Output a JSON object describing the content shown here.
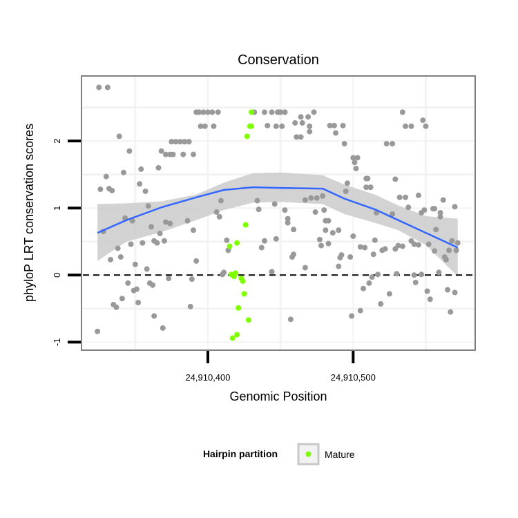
{
  "chart_data": {
    "type": "scatter",
    "title": "Conservation",
    "xlabel": "Genomic Position",
    "ylabel": "phyloP LRT conservation scores",
    "xlim": [
      24910313,
      24910584
    ],
    "ylim": [
      -1.12,
      2.97
    ],
    "x_ticks": [
      24910400,
      24910500
    ],
    "x_tick_labels": [
      "24,910,400",
      "24,910,500"
    ],
    "y_ticks": [
      -1,
      0,
      1,
      2
    ],
    "y_tick_labels": [
      "-1",
      "0",
      "1",
      "2"
    ],
    "grid": true,
    "reference_line_y": 0,
    "legend": {
      "title": "Hairpin partition",
      "entries": [
        "Mature"
      ],
      "placement": "bottom"
    },
    "colors": {
      "other": "#999999",
      "mature": "#7fff00",
      "smooth": "#3366ff",
      "ribbon": "#c8c8c8"
    },
    "series": [
      {
        "name": "Other",
        "points": [
          [
            24910325,
            2.8
          ],
          [
            24910331,
            2.8
          ],
          [
            24910392,
            2.43
          ],
          [
            24910394,
            2.43
          ],
          [
            24910397,
            2.43
          ],
          [
            24910400,
            2.43
          ],
          [
            24910403,
            2.43
          ],
          [
            24910407,
            2.43
          ],
          [
            24910432,
            2.43
          ],
          [
            24910439,
            2.43
          ],
          [
            24910444,
            2.43
          ],
          [
            24910449,
            2.43
          ],
          [
            24910453,
            2.43
          ],
          [
            24910395,
            2.22
          ],
          [
            24910398,
            2.22
          ],
          [
            24910404,
            2.22
          ],
          [
            24910441,
            2.23
          ],
          [
            24910447,
            2.22
          ],
          [
            24910339,
            2.07
          ],
          [
            24910375,
            1.99
          ],
          [
            24910378,
            1.99
          ],
          [
            24910381,
            1.99
          ],
          [
            24910384,
            1.99
          ],
          [
            24910387,
            1.99
          ],
          [
            24910346,
            1.85
          ],
          [
            24910368,
            1.85
          ],
          [
            24910371,
            1.8
          ],
          [
            24910374,
            1.8
          ],
          [
            24910376,
            1.8
          ],
          [
            24910383,
            1.8
          ],
          [
            24910390,
            1.8
          ],
          [
            24910354,
            1.58
          ],
          [
            24910366,
            1.6
          ],
          [
            24910330,
            1.47
          ],
          [
            24910342,
            1.53
          ],
          [
            24910326,
            1.28
          ],
          [
            24910332,
            1.29
          ],
          [
            24910334,
            1.26
          ],
          [
            24910353,
            1.36
          ],
          [
            24910357,
            1.25
          ],
          [
            24910359,
            1.03
          ],
          [
            24910409,
            1.11
          ],
          [
            24910434,
            1.11
          ],
          [
            24910435,
            0.98
          ],
          [
            24910446,
            1.06
          ],
          [
            24910343,
            0.85
          ],
          [
            24910348,
            0.81
          ],
          [
            24910328,
            0.65
          ],
          [
            24910361,
            0.72
          ],
          [
            24910371,
            0.79
          ],
          [
            24910374,
            0.77
          ],
          [
            24910386,
            0.81
          ],
          [
            24910390,
            0.67
          ],
          [
            24910406,
            0.94
          ],
          [
            24910408,
            0.87
          ],
          [
            24910367,
            0.62
          ],
          [
            24910347,
            0.46
          ],
          [
            24910355,
            0.48
          ],
          [
            24910363,
            0.51
          ],
          [
            24910365,
            0.48
          ],
          [
            24910370,
            0.51
          ],
          [
            24910338,
            0.4
          ],
          [
            24910333,
            0.23
          ],
          [
            24910340,
            0.27
          ],
          [
            24910413,
            0.52
          ],
          [
            24910414,
            0.37
          ],
          [
            24910439,
            0.51
          ],
          [
            24910437,
            0.41
          ],
          [
            24910447,
            0.54
          ],
          [
            24910350,
            0.16
          ],
          [
            24910358,
            0.09
          ],
          [
            24910392,
            0.21
          ],
          [
            24910444,
            0.05
          ],
          [
            24910410,
            0.01
          ],
          [
            24910411,
            0.04
          ],
          [
            24910345,
            -0.12
          ],
          [
            24910360,
            -0.12
          ],
          [
            24910362,
            -0.15
          ],
          [
            24910373,
            -0.05
          ],
          [
            24910389,
            -0.06
          ],
          [
            24910349,
            -0.23
          ],
          [
            24910351,
            -0.21
          ],
          [
            24910341,
            -0.35
          ],
          [
            24910335,
            -0.44
          ],
          [
            24910337,
            -0.48
          ],
          [
            24910352,
            -0.41
          ],
          [
            24910388,
            -0.47
          ],
          [
            24910363,
            -0.61
          ],
          [
            24910369,
            -0.79
          ],
          [
            24910324,
            -0.84
          ],
          [
            24910448,
            2.43
          ],
          [
            24910450,
            2.43
          ],
          [
            24910453,
            2.43
          ],
          [
            24910473,
            2.43
          ],
          [
            24910464,
            2.36
          ],
          [
            24910469,
            2.36
          ],
          [
            24910451,
            2.22
          ],
          [
            24910460,
            2.27
          ],
          [
            24910465,
            2.27
          ],
          [
            24910470,
            2.22
          ],
          [
            24910470,
            2.14
          ],
          [
            24910484,
            2.23
          ],
          [
            24910487,
            2.23
          ],
          [
            24910493,
            2.23
          ],
          [
            24910488,
            2.12
          ],
          [
            24910461,
            2.06
          ],
          [
            24910464,
            2.06
          ],
          [
            24910534,
            2.43
          ],
          [
            24910536,
            2.22
          ],
          [
            24910540,
            2.22
          ],
          [
            24910548,
            2.31
          ],
          [
            24910550,
            2.22
          ],
          [
            24910494,
            1.96
          ],
          [
            24910523,
            1.96
          ],
          [
            24910527,
            1.96
          ],
          [
            24910500,
            1.75
          ],
          [
            24910503,
            1.75
          ],
          [
            24910501,
            1.68
          ],
          [
            24910502,
            1.59
          ],
          [
            24910509,
            1.44
          ],
          [
            24910510,
            1.44
          ],
          [
            24910509,
            1.31
          ],
          [
            24910512,
            1.31
          ],
          [
            24910529,
            1.43
          ],
          [
            24910496,
            1.37
          ],
          [
            24910495,
            1.25
          ],
          [
            24910467,
            1.12
          ],
          [
            24910471,
            1.15
          ],
          [
            24910475,
            1.15
          ],
          [
            24910479,
            1.18
          ],
          [
            24910453,
            0.97
          ],
          [
            24910455,
            0.84
          ],
          [
            24910455,
            0.78
          ],
          [
            24910459,
            0.68
          ],
          [
            24910474,
            0.94
          ],
          [
            24910480,
            0.97
          ],
          [
            24910481,
            0.81
          ],
          [
            24910483,
            0.81
          ],
          [
            24910481,
            0.67
          ],
          [
            24910486,
            0.63
          ],
          [
            24910490,
            0.67
          ],
          [
            24910477,
            0.53
          ],
          [
            24910478,
            0.44
          ],
          [
            24910483,
            0.47
          ],
          [
            24910459,
            0.31
          ],
          [
            24910458,
            0.27
          ],
          [
            24910467,
            0.11
          ],
          [
            24910492,
            0.3
          ],
          [
            24910491,
            0.26
          ],
          [
            24910498,
            0.27
          ],
          [
            24910490,
            0.13
          ],
          [
            24910500,
            0.58
          ],
          [
            24910505,
            0.42
          ],
          [
            24910508,
            0.41
          ],
          [
            24910515,
            0.52
          ],
          [
            24910514,
            0.31
          ],
          [
            24910520,
            0.37
          ],
          [
            24910522,
            0.39
          ],
          [
            24910529,
            0.39
          ],
          [
            24910531,
            0.44
          ],
          [
            24910534,
            0.43
          ],
          [
            24910532,
            1.16
          ],
          [
            24910536,
            1.16
          ],
          [
            24910538,
            1.01
          ],
          [
            24910545,
            1.19
          ],
          [
            24910516,
            0.93
          ],
          [
            24910527,
            0.91
          ],
          [
            24910540,
            0.51
          ],
          [
            24910542,
            0.46
          ],
          [
            24910545,
            0.45
          ],
          [
            24910547,
            0.93
          ],
          [
            24910549,
            0.97
          ],
          [
            24910555,
            0.99
          ],
          [
            24910556,
            0.99
          ],
          [
            24910560,
            0.93
          ],
          [
            24910560,
            0.87
          ],
          [
            24910562,
            1.12
          ],
          [
            24910570,
            1.02
          ],
          [
            24910557,
            0.68
          ],
          [
            24910552,
            0.46
          ],
          [
            24910556,
            0.36
          ],
          [
            24910563,
            0.27
          ],
          [
            24910564,
            0.23
          ],
          [
            24910568,
            0.51
          ],
          [
            24910572,
            0.48
          ],
          [
            24910566,
            0.37
          ],
          [
            24910571,
            0.37
          ],
          [
            24910513,
            -0.03
          ],
          [
            24910517,
            0.01
          ],
          [
            24910511,
            -0.12
          ],
          [
            24910507,
            -0.2
          ],
          [
            24910530,
            0.02
          ],
          [
            24910542,
            0.0
          ],
          [
            24910543,
            -0.11
          ],
          [
            24910547,
            0.01
          ],
          [
            24910559,
            0.04
          ],
          [
            24910525,
            -0.28
          ],
          [
            24910519,
            -0.43
          ],
          [
            24910505,
            -0.53
          ],
          [
            24910499,
            -0.61
          ],
          [
            24910457,
            -0.66
          ],
          [
            24910551,
            -0.24
          ],
          [
            24910553,
            -0.36
          ],
          [
            24910565,
            -0.22
          ],
          [
            24910570,
            -0.26
          ],
          [
            24910567,
            -0.55
          ]
        ]
      },
      {
        "name": "Mature",
        "points": [
          [
            24910430,
            2.43
          ],
          [
            24910429,
            2.22
          ],
          [
            24910430,
            2.22
          ],
          [
            24910427,
            2.07
          ],
          [
            24910426,
            0.75
          ],
          [
            24910415,
            0.43
          ],
          [
            24910420,
            0.48
          ],
          [
            24910416,
            0.01
          ],
          [
            24910418,
            -0.02
          ],
          [
            24910419,
            0.03
          ],
          [
            24910423,
            -0.05
          ],
          [
            24910424,
            -0.09
          ],
          [
            24910425,
            -0.28
          ],
          [
            24910421,
            -0.49
          ],
          [
            24910428,
            -0.67
          ],
          [
            24910420,
            -0.89
          ],
          [
            24910417,
            -0.94
          ]
        ]
      }
    ],
    "smooth": {
      "x": [
        24910324,
        24910344,
        24910368,
        24910392,
        24910411,
        24910431,
        24910450,
        24910479,
        24910494,
        24910515,
        24910531,
        24910550,
        24910572
      ],
      "y": [
        0.63,
        0.82,
        1.01,
        1.16,
        1.27,
        1.31,
        1.3,
        1.29,
        1.14,
        0.98,
        0.82,
        0.63,
        0.41
      ],
      "upper": [
        1.06,
        1.07,
        1.1,
        1.2,
        1.38,
        1.52,
        1.53,
        1.49,
        1.35,
        1.2,
        1.04,
        0.88,
        0.84
      ],
      "lower": [
        0.21,
        0.5,
        0.64,
        0.82,
        0.97,
        1.08,
        1.09,
        1.06,
        0.91,
        0.78,
        0.67,
        0.45,
        -0.02
      ]
    }
  }
}
